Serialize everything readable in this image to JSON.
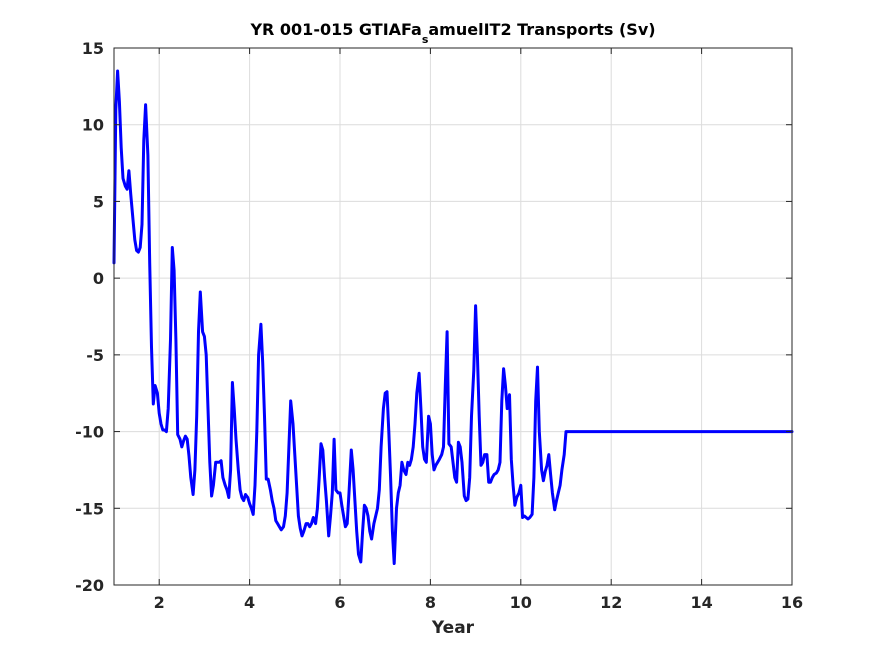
{
  "chart_data": {
    "type": "line",
    "title": "YR 001-015 GTIAFa_samuelIT2 Transports (Sv)",
    "title_parts": [
      "YR 001-015 GTIAFa",
      "s",
      "amuelIT2 Transports (Sv)"
    ],
    "xlabel": "Year",
    "ylabel": "",
    "xlim": [
      1,
      16
    ],
    "ylim": [
      -20,
      15
    ],
    "xticks": [
      2,
      4,
      6,
      8,
      10,
      12,
      14,
      16
    ],
    "xtick_labels": [
      "2",
      "4",
      "6",
      "8",
      "10",
      "12",
      "14",
      "16"
    ],
    "yticks": [
      -20,
      -15,
      -10,
      -5,
      0,
      5,
      10,
      15
    ],
    "ytick_labels": [
      "-20",
      "-15",
      "-10",
      "-5",
      "0",
      "5",
      "10",
      "15"
    ],
    "grid": true,
    "colors": {
      "line": "#0000ff",
      "grid": "#dcdcdc",
      "axes": "#262626"
    },
    "series": [
      {
        "x": [
          1.0,
          1.04,
          1.08,
          1.12,
          1.16,
          1.2,
          1.25,
          1.29,
          1.33,
          1.37,
          1.42,
          1.46,
          1.5,
          1.54,
          1.58,
          1.62,
          1.66,
          1.7,
          1.75,
          1.79,
          1.83,
          1.87,
          1.91,
          1.96,
          2.0,
          2.04,
          2.08,
          2.12,
          2.16,
          2.2,
          2.25,
          2.29,
          2.33,
          2.37,
          2.41,
          2.46,
          2.5,
          2.54,
          2.58,
          2.62,
          2.66,
          2.7,
          2.75,
          2.79,
          2.83,
          2.87,
          2.91,
          2.96,
          3.0,
          3.04,
          3.08,
          3.12,
          3.16,
          3.2,
          3.25,
          3.29,
          3.33,
          3.37,
          3.41,
          3.46,
          3.5,
          3.54,
          3.58,
          3.62,
          3.66,
          3.7,
          3.75,
          3.79,
          3.83,
          3.87,
          3.91,
          3.96,
          4.0,
          4.04,
          4.08,
          4.12,
          4.16,
          4.2,
          4.25,
          4.29,
          4.33,
          4.37,
          4.41,
          4.46,
          4.5,
          4.54,
          4.58,
          4.62,
          4.66,
          4.7,
          4.75,
          4.79,
          4.83,
          4.87,
          4.91,
          4.96,
          5.0,
          5.04,
          5.08,
          5.12,
          5.16,
          5.2,
          5.25,
          5.29,
          5.33,
          5.37,
          5.41,
          5.46,
          5.5,
          5.54,
          5.58,
          5.62,
          5.66,
          5.7,
          5.75,
          5.79,
          5.83,
          5.87,
          5.91,
          5.96,
          6.0,
          6.04,
          6.08,
          6.12,
          6.16,
          6.2,
          6.25,
          6.29,
          6.33,
          6.37,
          6.41,
          6.46,
          6.5,
          6.54,
          6.58,
          6.62,
          6.66,
          6.7,
          6.75,
          6.79,
          6.83,
          6.87,
          6.91,
          6.96,
          7.0,
          7.04,
          7.08,
          7.12,
          7.16,
          7.2,
          7.25,
          7.29,
          7.33,
          7.37,
          7.41,
          7.46,
          7.5,
          7.54,
          7.58,
          7.62,
          7.66,
          7.7,
          7.75,
          7.79,
          7.83,
          7.87,
          7.91,
          7.96,
          8.0,
          8.04,
          8.08,
          8.12,
          8.16,
          8.2,
          8.25,
          8.29,
          8.33,
          8.37,
          8.41,
          8.46,
          8.5,
          8.54,
          8.58,
          8.62,
          8.66,
          8.7,
          8.75,
          8.79,
          8.83,
          8.87,
          8.91,
          8.96,
          9.0,
          9.04,
          9.08,
          9.12,
          9.16,
          9.2,
          9.25,
          9.29,
          9.33,
          9.37,
          9.41,
          9.46,
          9.5,
          9.54,
          9.58,
          9.62,
          9.66,
          9.7,
          9.75,
          9.79,
          9.83,
          9.87,
          9.91,
          9.96,
          10.0,
          10.04,
          10.08,
          10.12,
          10.16,
          10.2,
          10.25,
          10.29,
          10.33,
          10.37,
          10.41,
          10.46,
          10.5,
          10.54,
          10.58,
          10.62,
          10.66,
          10.7,
          10.75,
          10.79,
          10.83,
          10.87,
          10.91,
          10.96,
          11.0,
          11.04,
          11.08,
          11.12,
          11.16,
          11.2,
          11.25,
          11.29,
          11.33,
          11.37,
          11.41,
          11.46,
          11.5,
          11.54,
          11.58,
          11.62,
          11.66,
          11.7,
          11.75,
          11.79,
          11.83,
          11.87,
          11.91,
          11.96,
          12.0,
          12.04,
          12.08,
          12.12,
          12.16,
          12.2,
          12.25,
          12.29,
          12.33,
          12.37,
          12.41,
          12.46,
          12.5,
          12.54,
          12.58,
          12.62,
          12.66,
          12.7,
          12.75,
          12.79,
          12.83,
          12.87,
          12.91,
          12.96,
          13.0,
          13.04,
          13.08,
          13.12,
          13.16,
          13.2,
          13.25,
          13.29,
          13.33,
          13.37,
          13.41,
          13.46,
          13.5,
          13.54,
          13.58,
          13.62,
          13.66,
          13.7,
          13.75,
          13.79,
          13.83,
          13.87,
          13.91,
          13.96,
          14.0,
          14.04,
          14.08,
          14.12,
          14.16,
          14.2,
          14.25,
          14.29,
          14.33,
          14.37,
          14.41,
          14.46,
          14.5,
          14.54,
          14.58,
          14.62,
          14.66,
          14.7,
          14.75,
          14.79,
          14.83,
          14.87,
          14.91,
          14.96,
          15.0,
          15.04,
          15.08,
          15.12,
          15.16,
          15.2,
          15.25,
          15.29,
          15.33,
          15.37,
          15.41,
          15.46,
          15.5,
          15.54,
          15.58,
          15.62,
          15.66,
          15.7,
          15.75,
          15.79,
          15.83,
          15.87,
          15.91,
          15.96,
          16.0
        ],
        "y": [
          1.0,
          11.0,
          13.5,
          11.5,
          8.5,
          6.5,
          6.0,
          5.8,
          7.0,
          5.5,
          3.8,
          2.5,
          1.8,
          1.7,
          2.0,
          3.5,
          9.0,
          11.3,
          8.0,
          1.0,
          -4.5,
          -8.2,
          -7.0,
          -7.5,
          -8.8,
          -9.5,
          -9.9,
          -9.9,
          -10.0,
          -8.5,
          -4.0,
          2.0,
          0.5,
          -4.0,
          -10.2,
          -10.5,
          -11.0,
          -10.6,
          -10.3,
          -10.5,
          -11.6,
          -13.0,
          -14.1,
          -12.5,
          -9.0,
          -3.5,
          -0.9,
          -3.5,
          -3.8,
          -5.0,
          -8.5,
          -12.0,
          -14.2,
          -13.5,
          -12.0,
          -12.0,
          -12.0,
          -11.9,
          -13.0,
          -13.5,
          -13.8,
          -14.3,
          -12.5,
          -6.8,
          -8.5,
          -10.5,
          -12.5,
          -13.8,
          -14.3,
          -14.5,
          -14.1,
          -14.3,
          -14.7,
          -15.0,
          -15.4,
          -13.5,
          -10.0,
          -5.0,
          -3.0,
          -5.5,
          -9.0,
          -13.1,
          -13.1,
          -13.8,
          -14.5,
          -15.0,
          -15.8,
          -16.0,
          -16.2,
          -16.4,
          -16.2,
          -15.5,
          -14.0,
          -11.0,
          -8.0,
          -9.5,
          -11.5,
          -13.5,
          -15.5,
          -16.3,
          -16.8,
          -16.5,
          -16.0,
          -16.0,
          -16.2,
          -16.0,
          -15.6,
          -16.0,
          -15.0,
          -13.0,
          -10.8,
          -11.2,
          -13.0,
          -14.5,
          -16.8,
          -15.5,
          -14.0,
          -10.5,
          -13.8,
          -14.0,
          -14.0,
          -14.8,
          -15.5,
          -16.2,
          -16.0,
          -14.0,
          -11.2,
          -12.5,
          -14.5,
          -16.5,
          -18.0,
          -18.5,
          -16.5,
          -14.8,
          -15.0,
          -15.5,
          -16.5,
          -17.0,
          -16.0,
          -15.5,
          -15.0,
          -13.8,
          -11.0,
          -8.5,
          -7.5,
          -7.4,
          -10.0,
          -13.0,
          -16.5,
          -18.6,
          -15.0,
          -14.0,
          -13.5,
          -12.0,
          -12.5,
          -12.8,
          -12.0,
          -12.2,
          -11.8,
          -11.0,
          -9.5,
          -7.5,
          -6.2,
          -8.5,
          -11.0,
          -11.8,
          -12.0,
          -9.0,
          -9.5,
          -11.5,
          -12.5,
          -12.2,
          -12.0,
          -11.8,
          -11.5,
          -11.0,
          -7.0,
          -3.5,
          -10.8,
          -11.0,
          -12.0,
          -13.0,
          -13.3,
          -10.7,
          -11.0,
          -12.0,
          -14.2,
          -14.5,
          -14.4,
          -13.0,
          -9.0,
          -6.0,
          -1.8,
          -5.0,
          -9.0,
          -12.2,
          -12.0,
          -11.5,
          -11.5,
          -13.3,
          -13.3,
          -13.0,
          -12.8,
          -12.7,
          -12.5,
          -12.0,
          -8.0,
          -5.9,
          -7.0,
          -8.5,
          -7.6,
          -11.8,
          -13.5,
          -14.8,
          -14.3,
          -14.0,
          -13.5,
          -15.6,
          -15.5,
          -15.6,
          -15.7,
          -15.6,
          -15.4,
          -13.0,
          -8.0,
          -5.8,
          -10.0,
          -12.5,
          -13.2,
          -12.6,
          -12.2,
          -11.5,
          -12.8,
          -14.0,
          -15.1,
          -14.5,
          -14.0,
          -13.5,
          -12.5,
          -11.5,
          -10.0,
          -10.0,
          -10.0,
          -10.0,
          -10.0,
          -10.0,
          -10.0,
          -10.0,
          -10.0,
          -10.0,
          -10.0,
          -10.0,
          -10.0,
          -10.0,
          -10.0,
          -10.0,
          -10.0,
          -10.0,
          -10.0,
          -10.0,
          -10.0,
          -10.0,
          -10.0,
          -10.0,
          -10.0,
          -10.0,
          -10.0,
          -10.0,
          -10.0,
          -10.0,
          -10.0,
          -10.0,
          -10.0,
          -10.0,
          -10.0,
          -10.0,
          -10.0,
          -10.0,
          -10.0,
          -10.0,
          -10.0,
          -10.0,
          -10.0,
          -10.0,
          -10.0,
          -10.0,
          -10.0,
          -10.0,
          -10.0,
          -10.0,
          -10.0,
          -10.0,
          -10.0,
          -10.0,
          -10.0,
          -10.0,
          -10.0,
          -10.0,
          -10.0,
          -10.0,
          -10.0,
          -10.0,
          -10.0,
          -10.0,
          -10.0,
          -10.0,
          -10.0,
          -10.0,
          -10.0,
          -10.0,
          -10.0,
          -10.0,
          -10.0,
          -10.0,
          -10.0,
          -10.0,
          -10.0,
          -10.0,
          -10.0,
          -10.0,
          -10.0,
          -10.0,
          -10.0,
          -10.0,
          -10.0,
          -10.0,
          -10.0,
          -10.0,
          -10.0,
          -10.0,
          -10.0,
          -10.0,
          -10.0,
          -10.0,
          -10.0,
          -10.0,
          -10.0,
          -10.0,
          -10.0,
          -10.0,
          -10.0,
          -10.0,
          -10.0,
          -10.0,
          -10.0,
          -10.0,
          -10.0,
          -10.0,
          -10.0,
          -10.0,
          -10.0,
          -10.0,
          -10.0,
          -10.0,
          -10.0,
          -10.0,
          -10.0,
          -10.0,
          -10.0,
          -10.0,
          -10.0
        ]
      }
    ]
  }
}
